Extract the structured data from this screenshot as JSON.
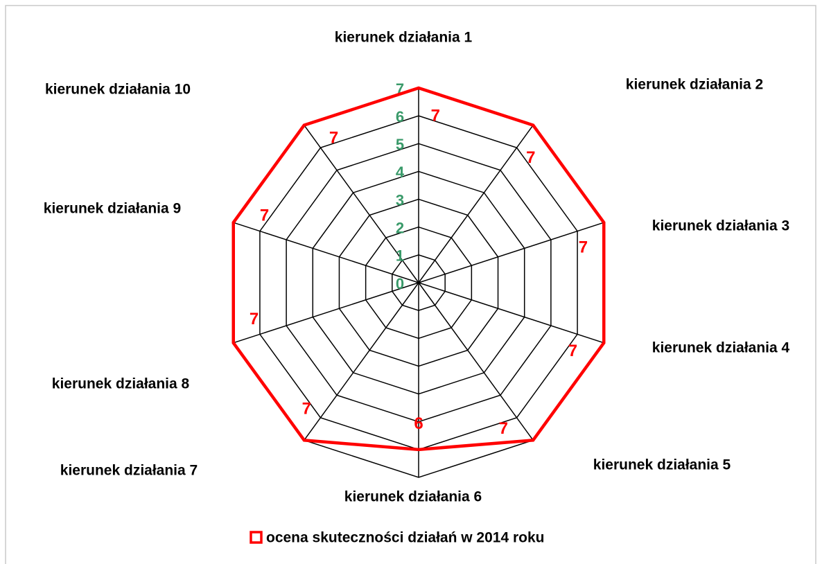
{
  "chart_data": {
    "type": "radar",
    "categories": [
      "kierunek działania 1",
      "kierunek działania 2",
      "kierunek działania 3",
      "kierunek działania 4",
      "kierunek działania 5",
      "kierunek działania 6",
      "kierunek działania 7",
      "kierunek działania 8",
      "kierunek działania 9",
      "kierunek działania 10"
    ],
    "series": [
      {
        "name": "ocena skuteczności działań w 2014 roku",
        "color": "#ff0000",
        "values": [
          7,
          7,
          7,
          7,
          7,
          6,
          7,
          7,
          7,
          7
        ]
      }
    ],
    "ylim": [
      0,
      7
    ],
    "yticks": [
      0,
      1,
      2,
      3,
      4,
      5,
      6,
      7
    ],
    "tick_color": "#3a9a6a",
    "legend": "bottom"
  }
}
